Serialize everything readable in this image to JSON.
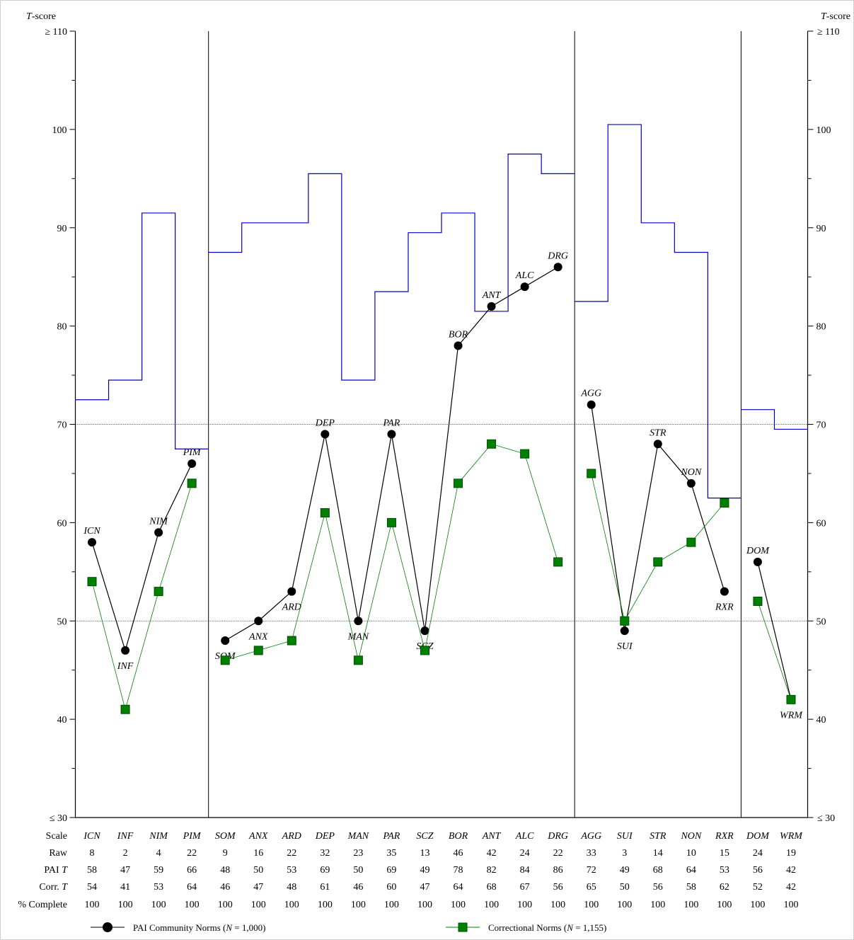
{
  "chart_data": {
    "type": "line",
    "y_axis": {
      "title_prefix": "T",
      "title_suffix": "-score",
      "top_label": "≥ 110",
      "bottom_label": "≤ 30",
      "ylim": [
        30,
        110
      ],
      "ticks": [
        {
          "value": 40,
          "label": "40"
        },
        {
          "value": 50,
          "label": "50"
        },
        {
          "value": 60,
          "label": "60"
        },
        {
          "value": 70,
          "label": "70"
        },
        {
          "value": 80,
          "label": "80"
        },
        {
          "value": 90,
          "label": "90"
        },
        {
          "value": 100,
          "label": "100"
        }
      ],
      "minor_tick_step": 5
    },
    "reference_lines": [
      50,
      70
    ],
    "group_separators_after": [
      "PIM",
      "DRG",
      "RXR"
    ],
    "scales": [
      "ICN",
      "INF",
      "NIM",
      "PIM",
      "SOM",
      "ANX",
      "ARD",
      "DEP",
      "MAN",
      "PAR",
      "SCZ",
      "BOR",
      "ANT",
      "ALC",
      "DRG",
      "AGG",
      "SUI",
      "STR",
      "NON",
      "RXR",
      "DOM",
      "WRM"
    ],
    "series": [
      {
        "name": "PAI Community Norms (N = 1,000)",
        "legend_text": "PAI Community Norms (",
        "legend_n": "N",
        "legend_rest": " = 1,000)",
        "color": "#000000",
        "marker": "circle",
        "values": [
          58,
          47,
          59,
          66,
          48,
          50,
          53,
          69,
          50,
          69,
          49,
          78,
          82,
          84,
          86,
          72,
          49,
          68,
          64,
          53,
          56,
          42
        ],
        "connect_groups": [
          [
            0,
            3
          ],
          [
            4,
            14
          ],
          [
            15,
            19
          ],
          [
            20,
            21
          ]
        ],
        "point_labels": [
          {
            "text": "ICN",
            "pos": "above"
          },
          {
            "text": "INF",
            "pos": "below"
          },
          {
            "text": "NIM",
            "pos": "above"
          },
          {
            "text": "PIM",
            "pos": "above"
          },
          {
            "text": "SOM",
            "pos": "below"
          },
          {
            "text": "ANX",
            "pos": "below"
          },
          {
            "text": "ARD",
            "pos": "below"
          },
          {
            "text": "DEP",
            "pos": "above"
          },
          {
            "text": "MAN",
            "pos": "below"
          },
          {
            "text": "PAR",
            "pos": "above"
          },
          {
            "text": "SCZ",
            "pos": "below"
          },
          {
            "text": "BOR",
            "pos": "above"
          },
          {
            "text": "ANT",
            "pos": "above"
          },
          {
            "text": "ALC",
            "pos": "above"
          },
          {
            "text": "DRG",
            "pos": "above"
          },
          {
            "text": "AGG",
            "pos": "above"
          },
          {
            "text": "SUI",
            "pos": "below"
          },
          {
            "text": "STR",
            "pos": "above"
          },
          {
            "text": "NON",
            "pos": "above"
          },
          {
            "text": "RXR",
            "pos": "below"
          },
          {
            "text": "DOM",
            "pos": "above"
          },
          {
            "text": "WRM",
            "pos": "below"
          }
        ]
      },
      {
        "name": "Correctional Norms (N = 1,155)",
        "legend_text": "Correctional Norms (",
        "legend_n": "N",
        "legend_rest": " = 1,155)",
        "color": "#008000",
        "marker": "square",
        "values": [
          54,
          41,
          53,
          64,
          46,
          47,
          48,
          61,
          46,
          60,
          47,
          64,
          68,
          67,
          56,
          65,
          50,
          56,
          58,
          62,
          52,
          42
        ],
        "connect_groups": [
          [
            0,
            3
          ],
          [
            4,
            14
          ],
          [
            15,
            19
          ],
          [
            20,
            21
          ]
        ]
      }
    ],
    "threshold_step": {
      "color": "#0000cc",
      "values": [
        72.5,
        74.5,
        91.5,
        67.5,
        87.5,
        90.5,
        90.5,
        95.5,
        74.5,
        83.5,
        89.5,
        91.5,
        81.5,
        97.5,
        95.5,
        82.5,
        100.5,
        90.5,
        87.5,
        62.5,
        71.5,
        69.5
      ],
      "connect_groups": [
        [
          0,
          3
        ],
        [
          4,
          14
        ],
        [
          15,
          19
        ],
        [
          20,
          21
        ]
      ]
    },
    "table": {
      "row_labels": {
        "scale": "Scale",
        "raw": "Raw",
        "pai_prefix": "PAI ",
        "pai_t": "T",
        "corr_prefix": "Corr. ",
        "corr_t": "T",
        "complete": "% Complete"
      },
      "raw": [
        "8",
        "2",
        "4",
        "22",
        "9",
        "16",
        "22",
        "32",
        "23",
        "35",
        "13",
        "46",
        "42",
        "24",
        "22",
        "33",
        "3",
        "14",
        "10",
        "15",
        "24",
        "19"
      ],
      "pai_t": [
        "58",
        "47",
        "59",
        "66",
        "48",
        "50",
        "53",
        "69",
        "50",
        "69",
        "49",
        "78",
        "82",
        "84",
        "86",
        "72",
        "49",
        "68",
        "64",
        "53",
        "56",
        "42"
      ],
      "corr_t": [
        "54",
        "41",
        "53",
        "64",
        "46",
        "47",
        "48",
        "61",
        "46",
        "60",
        "47",
        "64",
        "68",
        "67",
        "56",
        "65",
        "50",
        "56",
        "58",
        "62",
        "52",
        "42"
      ],
      "complete": [
        "100",
        "100",
        "100",
        "100",
        "100",
        "100",
        "100",
        "100",
        "100",
        "100",
        "100",
        "100",
        "100",
        "100",
        "100",
        "100",
        "100",
        "100",
        "100",
        "100",
        "100",
        "100"
      ]
    }
  }
}
